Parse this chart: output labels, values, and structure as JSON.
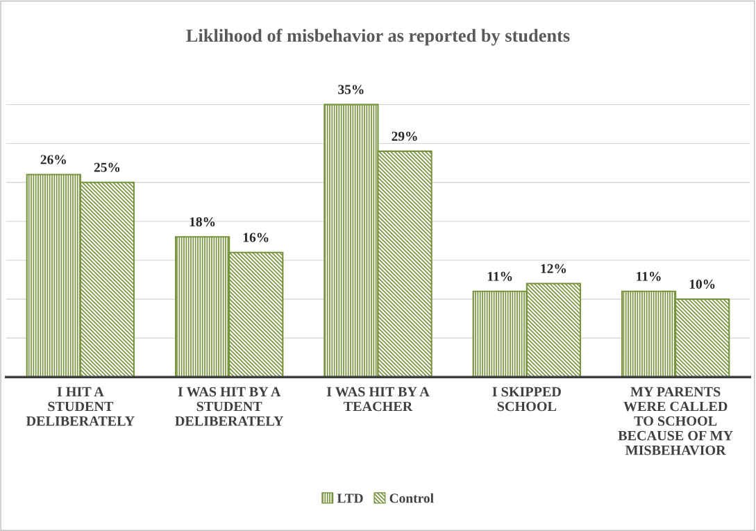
{
  "chart_data": {
    "type": "bar",
    "title": "Liklihood of misbehavior as reported by students",
    "categories": [
      "I HIT A\nSTUDENT\nDELIBERATELY",
      "I WAS HIT BY A\nSTUDENT\nDELIBERATELY",
      "I WAS HIT BY A\nTEACHER",
      "I SKIPPED\nSCHOOL",
      "MY PARENTS\nWERE CALLED\nTO SCHOOL\nBECAUSE OF MY\nMISBEHAVIOR"
    ],
    "series": [
      {
        "name": "LTD",
        "color": "#77933c",
        "values": [
          26,
          18,
          35,
          11,
          11
        ],
        "value_labels": [
          "26%",
          "18%",
          "35%",
          "11%",
          "11%"
        ]
      },
      {
        "name": "Control",
        "color": "#77933c",
        "values": [
          25,
          16,
          29,
          12,
          10
        ],
        "value_labels": [
          "25%",
          "16%",
          "29%",
          "12%",
          "10%"
        ]
      }
    ],
    "tick_labels": "x",
    "grid": "y",
    "legend": "bottom"
  }
}
